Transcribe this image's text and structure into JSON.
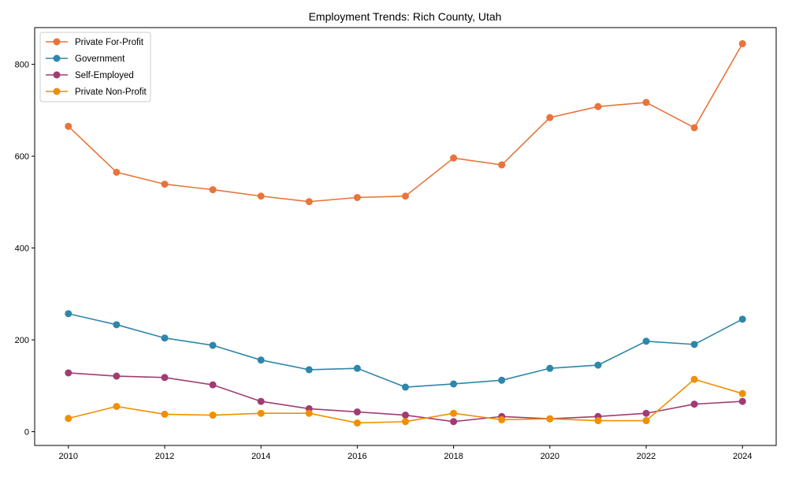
{
  "chart_data": {
    "type": "line",
    "title": "Employment Trends: Rich County, Utah",
    "xlabel": "",
    "ylabel": "",
    "x": [
      2010,
      2011,
      2012,
      2013,
      2014,
      2015,
      2016,
      2017,
      2018,
      2019,
      2020,
      2021,
      2022,
      2023,
      2024
    ],
    "xticks": [
      2010,
      2012,
      2014,
      2016,
      2018,
      2020,
      2022,
      2024
    ],
    "yticks": [
      0,
      200,
      400,
      600,
      800
    ],
    "xlim": [
      2009.3,
      2024.7
    ],
    "ylim": [
      -30,
      880
    ],
    "grid": false,
    "legend_position": "top-left",
    "series": [
      {
        "name": "Private For-Profit",
        "color": "#e8743b",
        "values": [
          665,
          565,
          539,
          527,
          513,
          501,
          510,
          513,
          596,
          581,
          684,
          708,
          717,
          662,
          845
        ]
      },
      {
        "name": "Government",
        "color": "#2e86ab",
        "values": [
          257,
          233,
          204,
          188,
          156,
          135,
          138,
          97,
          104,
          112,
          138,
          145,
          197,
          190,
          245
        ]
      },
      {
        "name": "Self-Employed",
        "color": "#a23b72",
        "values": [
          128,
          121,
          118,
          102,
          66,
          50,
          43,
          36,
          22,
          33,
          28,
          33,
          40,
          60,
          66
        ]
      },
      {
        "name": "Private Non-Profit",
        "color": "#f18f01",
        "values": [
          29,
          55,
          38,
          36,
          40,
          40,
          19,
          22,
          40,
          26,
          28,
          24,
          24,
          114,
          83
        ]
      }
    ]
  }
}
